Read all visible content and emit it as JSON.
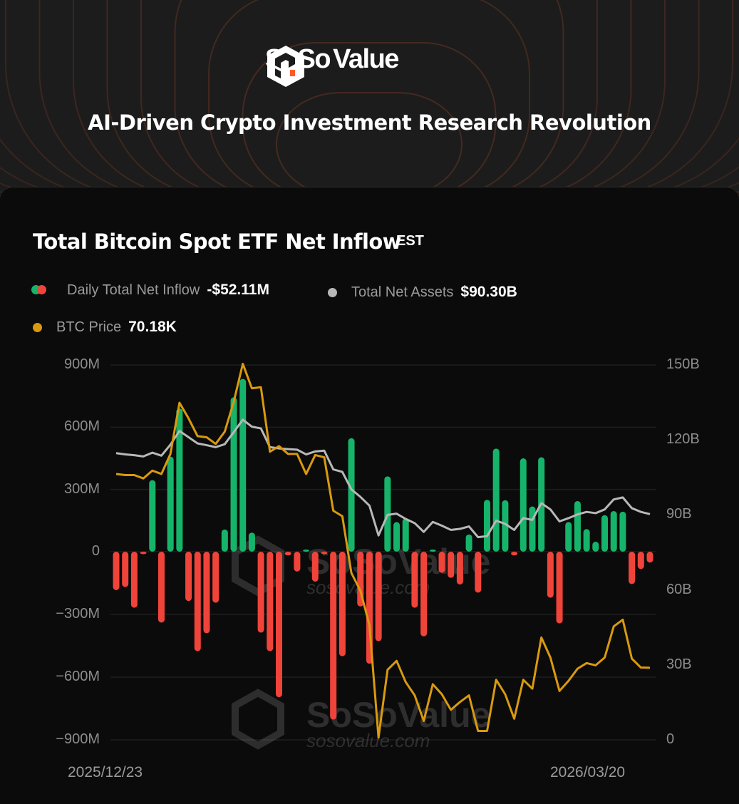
{
  "header": {
    "brand": "SoSoValue",
    "brand_parts": [
      "SoSo",
      "Value"
    ],
    "tagline": "AI-Driven Crypto Investment Research Revolution"
  },
  "card": {
    "title": "Total Bitcoin Spot ETF Net Inflow",
    "timezone": "EST",
    "legend": [
      {
        "label": "Daily Total Net Inflow",
        "value": "-$52.11M"
      },
      {
        "label": "Total Net Assets",
        "value": "$90.30B"
      },
      {
        "label": "BTC Price",
        "value": "70.18K"
      }
    ],
    "watermark": "SoSoValue sosovalue.com"
  },
  "colors": {
    "inflow_pos": "#16b46a",
    "inflow_neg": "#f0443a",
    "assets": "#b8b8b8",
    "price": "#d99a0e",
    "accent": "#ff5a2a"
  },
  "chart_data": {
    "type": "bar",
    "title": "Total Bitcoin Spot ETF Net Inflow",
    "x_start_label": "2025/12/23",
    "x_end_label": "2026/03/20",
    "left_axis": {
      "unit": "USD millions",
      "range": [
        -900,
        900
      ],
      "ticks": [
        "900M",
        "600M",
        "300M",
        "0",
        "−300M",
        "−600M",
        "−900M"
      ],
      "tick_values": [
        900,
        600,
        300,
        0,
        -300,
        -600,
        -900
      ]
    },
    "right_axis": {
      "unit": "USD billions",
      "range": [
        0,
        150
      ],
      "ticks": [
        "150B",
        "120B",
        "90B",
        "60B",
        "30B",
        "0"
      ],
      "tick_values": [
        150,
        120,
        90,
        60,
        30,
        0
      ]
    },
    "price_axis_hidden_range_k": [
      63.7,
      97.4
    ],
    "grid": true,
    "series": [
      {
        "name": "Daily Total Net Inflow",
        "type": "bar",
        "unit": "M",
        "values": [
          -184,
          -169,
          -268,
          -12,
          345,
          -339,
          458,
          690,
          -236,
          -476,
          -390,
          -244,
          107,
          744,
          833,
          92,
          -387,
          -476,
          -696,
          -18,
          -95,
          5,
          -143,
          -12,
          -803,
          -500,
          547,
          -262,
          -536,
          -428,
          363,
          143,
          161,
          -268,
          -405,
          10,
          -101,
          -125,
          -157,
          83,
          -196,
          250,
          497,
          248,
          -18,
          450,
          218,
          455,
          -220,
          -343,
          143,
          244,
          109,
          48,
          176,
          196,
          193,
          -155,
          -83,
          -52.11
        ]
      },
      {
        "name": "Total Net Assets",
        "type": "line",
        "unit": "B",
        "values": [
          114.7,
          114.2,
          113.9,
          113.4,
          114.9,
          113.7,
          118.1,
          123.6,
          121.1,
          118.6,
          117.9,
          117.1,
          118.3,
          123.1,
          128.1,
          125.3,
          124.6,
          117.1,
          116.6,
          116.3,
          116.1,
          114.2,
          115.4,
          115.7,
          108.2,
          107.2,
          100.2,
          97.2,
          93.7,
          81.8,
          90.0,
          90.5,
          88.4,
          86.7,
          83.2,
          87.2,
          85.7,
          84.0,
          84.4,
          85.4,
          81.1,
          81.5,
          87.7,
          86.4,
          84.0,
          88.7,
          88.0,
          94.7,
          92.2,
          87.4,
          88.7,
          90.2,
          91.2,
          90.7,
          92.2,
          96.2,
          97.0,
          92.7,
          91.2,
          90.3
        ]
      },
      {
        "name": "BTC Price",
        "type": "line",
        "unit": "K",
        "values": [
          87.6,
          87.5,
          87.5,
          87.2,
          87.9,
          87.6,
          89.4,
          94.0,
          92.6,
          91.0,
          90.9,
          90.3,
          91.4,
          94.1,
          97.5,
          95.3,
          95.4,
          89.6,
          90.1,
          89.4,
          89.4,
          87.6,
          89.3,
          89.1,
          84.3,
          83.8,
          78.7,
          77.1,
          74.0,
          63.9,
          70.0,
          70.8,
          68.9,
          67.7,
          65.4,
          68.7,
          67.8,
          66.4,
          67.1,
          67.7,
          64.5,
          64.5,
          69.1,
          67.8,
          65.6,
          69.1,
          68.3,
          72.9,
          71.1,
          68.1,
          69.0,
          70.1,
          70.6,
          70.4,
          71.1,
          73.9,
          74.5,
          71.0,
          70.2,
          70.18
        ]
      }
    ]
  }
}
